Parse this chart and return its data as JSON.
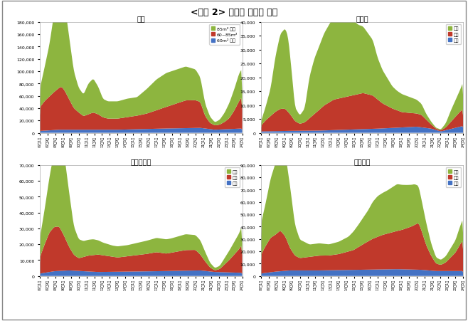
{
  "title": "<그림 2> 규모별 미분양 추이",
  "subplots": [
    "전국",
    "수도권",
    "지방광역시",
    "기타지방"
  ],
  "legend_labels_top": [
    "85m² 초과",
    "60~85m²",
    "60m² 이하"
  ],
  "legend_labels_bottom": [
    "대형",
    "중형",
    "소형"
  ],
  "colors": [
    "#8db53f",
    "#c0392b",
    "#4472c4"
  ],
  "yticks_0": [
    0,
    20000,
    40000,
    60000,
    80000,
    100000,
    120000,
    140000,
    160000,
    180000
  ],
  "yticks_1": [
    0,
    5000,
    10000,
    15000,
    20000,
    25000,
    30000,
    35000,
    40000
  ],
  "yticks_2": [
    0,
    10000,
    20000,
    30000,
    40000,
    50000,
    60000,
    70000
  ],
  "yticks_3": [
    0,
    10000,
    20000,
    30000,
    40000,
    50000,
    60000,
    70000,
    80000,
    90000
  ],
  "ymaxes": [
    180000,
    40000,
    70000,
    90000
  ],
  "background_color": "#ffffff"
}
